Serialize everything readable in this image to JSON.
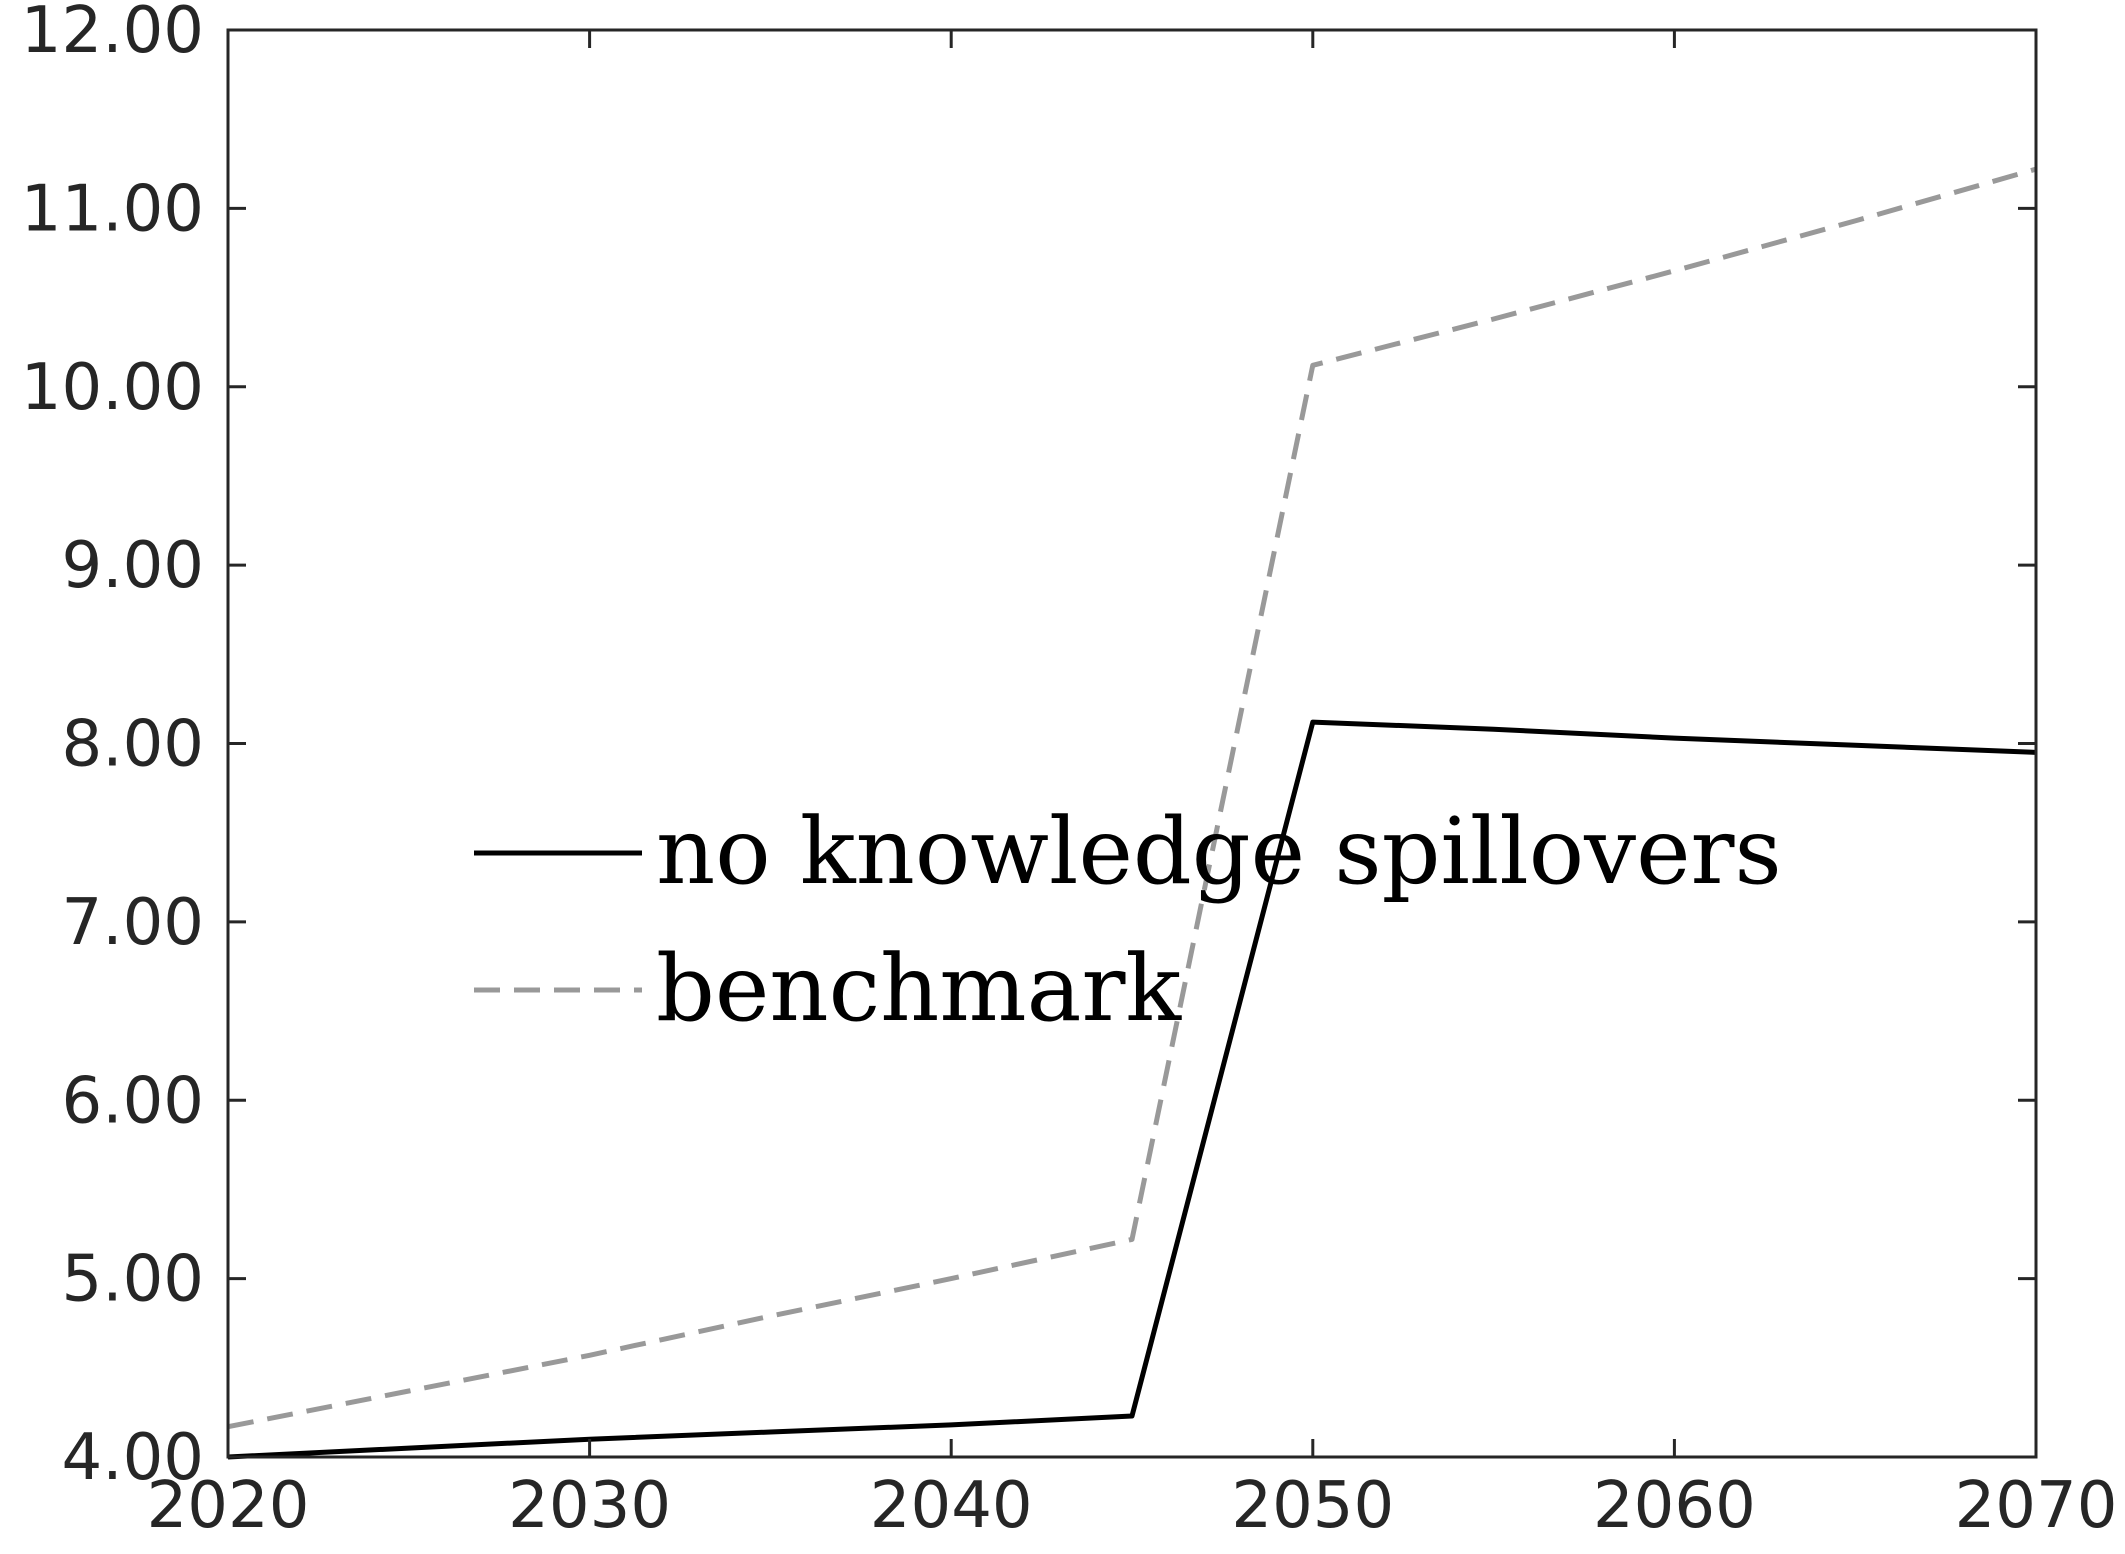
{
  "chart_data": {
    "type": "line",
    "x": [
      2020,
      2025,
      2030,
      2035,
      2040,
      2045,
      2050,
      2055,
      2060,
      2065,
      2070
    ],
    "xlim": [
      2020,
      2070
    ],
    "ylim": [
      4,
      12
    ],
    "xticks": [
      2020,
      2030,
      2040,
      2050,
      2060,
      2070
    ],
    "yticks": [
      4,
      5,
      6,
      7,
      8,
      9,
      10,
      11,
      12
    ],
    "xtick_labels": [
      "2020",
      "2030",
      "2040",
      "2050",
      "2060",
      "2070"
    ],
    "ytick_labels": [
      "4.00",
      "5.00",
      "6.00",
      "7.00",
      "8.00",
      "9.00",
      "10.00",
      "11.00",
      "12.00"
    ],
    "grid": false,
    "legend_position": "center-left",
    "series": [
      {
        "name": "no knowledge spillovers",
        "color": "#000000",
        "dash": "solid",
        "values": [
          4.0,
          4.05,
          4.1,
          4.14,
          4.18,
          4.23,
          8.12,
          8.08,
          8.03,
          7.99,
          7.95
        ]
      },
      {
        "name": "benchmark",
        "color": "#999999",
        "dash": "dashed",
        "values": [
          4.17,
          4.37,
          4.57,
          4.79,
          5.0,
          5.22,
          10.12,
          10.38,
          10.65,
          10.93,
          11.22
        ]
      }
    ]
  }
}
